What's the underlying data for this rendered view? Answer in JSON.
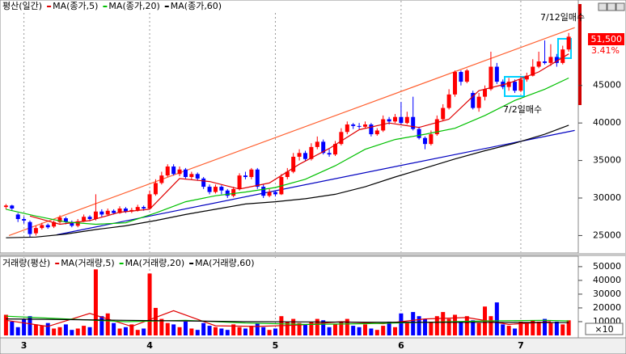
{
  "chart_data": [
    {
      "type": "candlestick",
      "title": "평산(일간)",
      "up_color": "#ff0000",
      "down_color": "#0000ff",
      "open": [
        28800,
        29000,
        27800,
        27200,
        26800,
        25300,
        26000,
        26400,
        26200,
        26800,
        27300,
        26800,
        26300,
        26900,
        27500,
        27200,
        28200,
        27800,
        28300,
        28000,
        28600,
        28200,
        28400,
        28800,
        28600,
        30500,
        32000,
        33000,
        34200,
        33200,
        33800,
        32800,
        33200,
        32600,
        31500,
        30800,
        31500,
        31000,
        30300,
        31200,
        33000,
        32800,
        33800,
        31500,
        30300,
        30800,
        30500,
        32800,
        33500,
        35500,
        36000,
        35200,
        36800,
        37500,
        36000,
        35800,
        37200,
        38800,
        39800,
        39600,
        39500,
        39800,
        38500,
        39000,
        40500,
        40200,
        40800,
        40000,
        40800,
        39200,
        38000,
        37200,
        38500,
        40500,
        42000,
        43800,
        46800,
        45500,
        44000,
        42000,
        43500,
        44500,
        47500,
        45500,
        44800,
        45500,
        44300,
        45800,
        46300,
        47500,
        48200,
        48000,
        48800,
        48000,
        49800
      ],
      "high": [
        29200,
        29100,
        28000,
        27500,
        27000,
        26300,
        26700,
        26600,
        27000,
        27700,
        27500,
        27000,
        27200,
        27800,
        27700,
        30500,
        28500,
        28600,
        28500,
        28900,
        28800,
        28700,
        29100,
        29000,
        31000,
        32500,
        33500,
        34500,
        34500,
        34200,
        34000,
        33500,
        33400,
        32800,
        31800,
        31800,
        31700,
        31200,
        31500,
        33300,
        33500,
        34000,
        34000,
        31800,
        31200,
        31000,
        33200,
        34000,
        36000,
        36500,
        36300,
        37300,
        38200,
        37800,
        36500,
        37600,
        39300,
        40200,
        40000,
        40000,
        40200,
        40000,
        39300,
        41000,
        40800,
        41200,
        42800,
        41500,
        43500,
        39500,
        38200,
        39000,
        41000,
        42500,
        44500,
        47000,
        47000,
        47200,
        44300,
        44000,
        45000,
        49500,
        48000,
        45800,
        46000,
        45800,
        46200,
        46700,
        48500,
        49500,
        51000,
        50500,
        49200,
        50300,
        52000
      ],
      "low": [
        28500,
        28400,
        26800,
        26600,
        24800,
        25000,
        25800,
        25900,
        26000,
        26600,
        26500,
        26100,
        26100,
        26800,
        26900,
        27000,
        27500,
        27600,
        27800,
        27900,
        28000,
        28000,
        28200,
        28300,
        28500,
        30300,
        31800,
        32800,
        33000,
        32900,
        32600,
        32500,
        32300,
        31200,
        30500,
        30600,
        30500,
        30000,
        30100,
        31000,
        32500,
        32500,
        31200,
        30000,
        30100,
        30200,
        30400,
        32500,
        33300,
        35000,
        35000,
        35000,
        36500,
        35800,
        35500,
        35600,
        37000,
        38500,
        39200,
        39200,
        39300,
        38200,
        38300,
        38800,
        39800,
        40000,
        39800,
        39800,
        39000,
        37800,
        36500,
        37000,
        38300,
        40300,
        41800,
        43500,
        45000,
        45300,
        41800,
        41500,
        43000,
        44300,
        45200,
        44500,
        44300,
        44000,
        44100,
        45500,
        46200,
        47300,
        47800,
        47600,
        47500,
        47800,
        49500
      ],
      "close": [
        29000,
        28600,
        27200,
        27000,
        25200,
        26000,
        26400,
        26100,
        26800,
        27400,
        26800,
        26300,
        26900,
        27500,
        27200,
        28200,
        27800,
        28300,
        28000,
        28600,
        28200,
        28400,
        28800,
        28600,
        30500,
        32000,
        33000,
        34200,
        33200,
        33800,
        32800,
        33200,
        32600,
        31500,
        30800,
        31500,
        31000,
        30300,
        31200,
        33000,
        32800,
        33800,
        31500,
        30300,
        30800,
        30500,
        32800,
        33500,
        35500,
        36000,
        35200,
        36800,
        37500,
        36000,
        35800,
        37200,
        38800,
        39800,
        39600,
        39500,
        39800,
        38500,
        39000,
        40500,
        40200,
        40800,
        40000,
        40800,
        39200,
        38000,
        37200,
        38500,
        40500,
        42000,
        43800,
        46800,
        45500,
        47000,
        42000,
        43500,
        44500,
        47500,
        45500,
        44800,
        45500,
        44300,
        45800,
        46300,
        47500,
        48200,
        48000,
        48800,
        48000,
        49800,
        51500
      ],
      "series": [
        {
          "name": "MA(종가,5)",
          "color": "#e00000",
          "x": [
            4,
            9,
            14,
            19,
            24,
            29,
            34,
            39,
            44,
            49,
            54,
            59,
            64,
            69,
            74,
            79,
            84,
            89,
            94
          ],
          "values": [
            27600,
            26500,
            27000,
            28100,
            28500,
            32600,
            32200,
            31200,
            32000,
            34500,
            36600,
            39100,
            40000,
            39400,
            40500,
            44300,
            45300,
            46800,
            49200
          ]
        },
        {
          "name": "MA(종가,20)",
          "color": "#00c000",
          "x": [
            0,
            5,
            10,
            15,
            20,
            25,
            30,
            35,
            40,
            45,
            50,
            55,
            60,
            65,
            70,
            75,
            80,
            85,
            90,
            94
          ],
          "values": [
            28500,
            27600,
            26800,
            26500,
            26700,
            28000,
            29500,
            30300,
            30800,
            31400,
            32500,
            34300,
            36500,
            37800,
            38500,
            39300,
            41000,
            43000,
            44500,
            46000
          ]
        },
        {
          "name": "MA(종가,60)",
          "color": "#000000",
          "x": [
            0,
            5,
            10,
            15,
            20,
            25,
            30,
            35,
            40,
            45,
            50,
            55,
            60,
            65,
            70,
            75,
            80,
            85,
            90,
            94
          ],
          "values": [
            24700,
            24800,
            25200,
            25800,
            26300,
            27000,
            27800,
            28500,
            29200,
            29500,
            29900,
            30500,
            31500,
            32800,
            34000,
            35200,
            36300,
            37300,
            38500,
            39700
          ]
        }
      ],
      "trendlines": [
        {
          "color": "#ff6030",
          "x": [
            0.5,
            95
          ],
          "values": [
            25000,
            52700
          ]
        },
        {
          "color": "#0000c0",
          "x": [
            8.5,
            95
          ],
          "values": [
            25100,
            39000
          ]
        }
      ],
      "annotations": [
        "7/12일매수",
        "7/2일매수"
      ],
      "last_price": {
        "value": 51500,
        "label": "51,500"
      },
      "last_change": {
        "value": 3.41,
        "label": "3.41%"
      },
      "ylim": [
        23000,
        55850
      ],
      "yticks": [
        25000,
        30000,
        35000,
        40000,
        45000
      ]
    },
    {
      "type": "bar",
      "title": "거래량(평산)",
      "values": [
        15000,
        10000,
        6000,
        12000,
        14000,
        8000,
        7000,
        9000,
        5000,
        6000,
        8000,
        4000,
        5000,
        7000,
        6000,
        48000,
        14000,
        16000,
        9000,
        5000,
        6000,
        8000,
        4000,
        5000,
        45000,
        20000,
        12000,
        9000,
        8000,
        6000,
        10000,
        5000,
        4000,
        9000,
        7000,
        6000,
        5000,
        4000,
        8000,
        6000,
        5000,
        7000,
        9000,
        6000,
        4000,
        5000,
        14000,
        10000,
        12000,
        9000,
        8000,
        10000,
        12000,
        11000,
        6000,
        8000,
        10000,
        12000,
        7000,
        6000,
        8000,
        5000,
        4000,
        7000,
        10000,
        6000,
        16000,
        9000,
        17000,
        14000,
        12000,
        10000,
        14000,
        17000,
        12000,
        15000,
        10000,
        14000,
        11000,
        9000,
        21000,
        14000,
        24000,
        8000,
        7000,
        5000,
        10000,
        9000,
        11000,
        10000,
        12000,
        9000,
        10000,
        8000,
        11000
      ],
      "series": [
        {
          "name": "MA(거래량,5)",
          "color": "#e00000",
          "x": [
            0,
            7,
            14,
            21,
            28,
            35,
            42,
            49,
            56,
            63,
            70,
            77,
            84,
            91
          ],
          "values": [
            11000,
            6500,
            16000,
            6500,
            18000,
            7000,
            6500,
            7500,
            10000,
            8500,
            12000,
            13000,
            8000,
            10000
          ]
        },
        {
          "name": "MA(거래량,20)",
          "color": "#00c000",
          "x": [
            0,
            10,
            20,
            30,
            40,
            50,
            60,
            70,
            80,
            90,
            94
          ],
          "values": [
            14000,
            12000,
            10000,
            11000,
            9000,
            8000,
            8500,
            9500,
            10500,
            11000,
            10500
          ]
        },
        {
          "name": "MA(거래량,60)",
          "color": "#000000",
          "x": [
            0,
            10,
            20,
            30,
            40,
            50,
            60,
            70,
            80,
            90,
            94
          ],
          "values": [
            12000,
            11500,
            11000,
            10500,
            10000,
            9800,
            9600,
            9500,
            9500,
            9400,
            9300
          ]
        }
      ],
      "unit": "×10",
      "xlim": [
        -1,
        95.6
      ],
      "xticks": [
        {
          "value": 3,
          "label": "3"
        },
        {
          "value": 24,
          "label": "4"
        },
        {
          "value": 45,
          "label": "5"
        },
        {
          "value": 66,
          "label": "6"
        },
        {
          "value": 86,
          "label": "7"
        }
      ],
      "ylim": [
        0,
        57000
      ],
      "yticks": [
        10000,
        20000,
        30000,
        40000,
        50000
      ]
    }
  ]
}
